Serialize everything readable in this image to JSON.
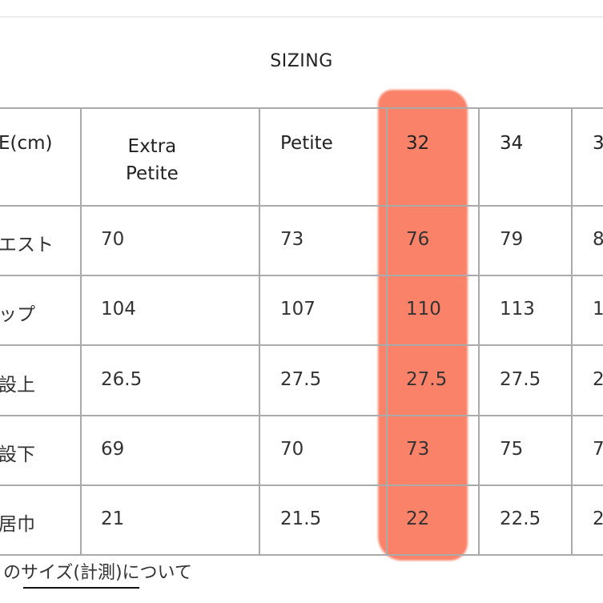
{
  "title": "SIZING",
  "highlight_color": "#f97c62",
  "table": {
    "columns": [
      "E(cm)",
      "Extra\nPetite",
      "Petite",
      "32",
      "34",
      "3"
    ],
    "highlighted_column": "32",
    "rows": [
      {
        "label": "エスト",
        "values": [
          "70",
          "73",
          "76",
          "79",
          "8"
        ]
      },
      {
        "label": "ップ",
        "values": [
          "104",
          "107",
          "110",
          "113",
          "1"
        ]
      },
      {
        "label": "設上",
        "values": [
          "26.5",
          "27.5",
          "27.5",
          "27.5",
          "2"
        ]
      },
      {
        "label": "設下",
        "values": [
          "69",
          "70",
          "73",
          "75",
          "7"
        ]
      },
      {
        "label": "居巾",
        "values": [
          "21",
          "21.5",
          "22",
          "22.5",
          "2"
        ]
      }
    ]
  },
  "footer": {
    "prefix": "の",
    "link": "サイズ(計測)",
    "suffix": "について"
  }
}
